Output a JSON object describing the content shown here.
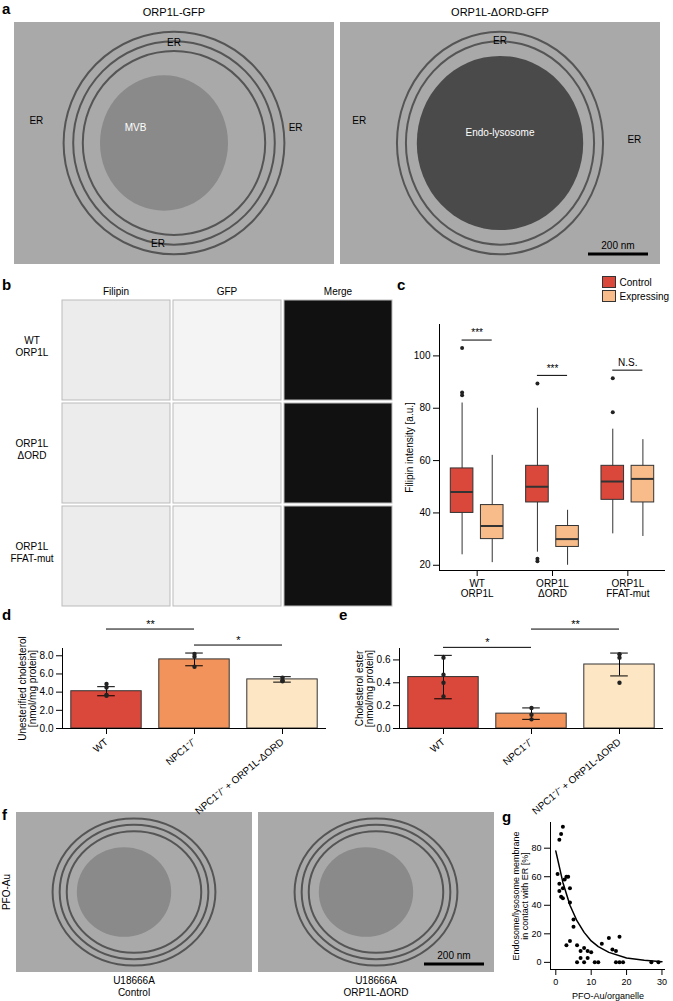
{
  "panels": {
    "a": {
      "letter": "a",
      "images": [
        {
          "title": "ORP1L-GFP",
          "labels": [
            "ER",
            "ER",
            "ER",
            "ER",
            "MVB"
          ]
        },
        {
          "title": "ORP1L-ΔORD-GFP",
          "labels": [
            "ER",
            "ER",
            "ER",
            "Endo-lysosome"
          ],
          "scale_bar": "200 nm"
        }
      ]
    },
    "b": {
      "letter": "b",
      "columns": [
        "Filipin",
        "GFP",
        "Merge"
      ],
      "rows": [
        "WT\nORP1L",
        "ORP1L\nΔORD",
        "ORP1L\nFFAT-mut"
      ]
    },
    "f": {
      "letter": "f",
      "side_label": "PFO-Au",
      "images": [
        {
          "caption": "U18666A\nControl"
        },
        {
          "caption": "U18666A\nORP1L-ΔORD",
          "scale_bar": "200 nm"
        }
      ]
    }
  },
  "chart_data": [
    {
      "panel": "c",
      "type": "boxplot",
      "categories": [
        "WT\nORP1L",
        "ORP1L\nΔORD",
        "ORP1L\nFFAT-mut"
      ],
      "series": [
        {
          "name": "Control",
          "color": "#d9483b",
          "boxes": [
            {
              "min": 24,
              "q1": 40,
              "median": 48,
              "q3": 57,
              "max": 82,
              "outliers": [
                85,
                86,
                103
              ]
            },
            {
              "min": 25,
              "q1": 44,
              "median": 50,
              "q3": 58,
              "max": 80,
              "outliers": [
                89.5,
                22.5,
                21.5
              ]
            },
            {
              "min": 32,
              "q1": 45,
              "median": 52,
              "q3": 58,
              "max": 72,
              "outliers": [
                78.5,
                91.5
              ]
            }
          ]
        },
        {
          "name": "Expressing",
          "color": "#f7bc8a",
          "boxes": [
            {
              "min": 21,
              "q1": 30,
              "median": 35,
              "q3": 43,
              "max": 62,
              "outliers": []
            },
            {
              "min": 20,
              "q1": 27,
              "median": 30,
              "q3": 35,
              "max": 41,
              "outliers": []
            },
            {
              "min": 31,
              "q1": 44,
              "median": 53,
              "q3": 58,
              "max": 68,
              "outliers": []
            }
          ]
        }
      ],
      "significance": [
        "***",
        "***",
        "N.S."
      ],
      "y_label": "Filipin intensity [a.u.]",
      "ylim": [
        18,
        112
      ],
      "yticks": [
        20,
        40,
        60,
        80,
        100
      ],
      "legend": "top-right"
    },
    {
      "panel": "d",
      "type": "bar",
      "categories": [
        "WT",
        "NPC1⁻/⁻",
        "NPC1⁻/⁻ + ORP1L-ΔORD"
      ],
      "values": [
        4.1,
        7.6,
        5.4
      ],
      "errors": [
        0.5,
        0.7,
        0.3
      ],
      "points": [
        [
          4.9,
          4.5,
          3.7,
          3.6
        ],
        [
          8.2,
          7.9,
          6.8
        ],
        [
          5.6,
          5.3,
          5.2
        ]
      ],
      "colors": [
        "#d9483b",
        "#f2935c",
        "#fde6c4"
      ],
      "y_label": "Unesterified cholesterol\n[nmol/mg protein]",
      "ylim": [
        0,
        8.8
      ],
      "yticks": [
        {
          "value": 0,
          "label": "0.0"
        },
        {
          "value": 2,
          "label": "2.0"
        },
        {
          "value": 4,
          "label": "4.0"
        },
        {
          "value": 6,
          "label": "6.0"
        },
        {
          "value": 8,
          "label": "8.0"
        }
      ],
      "significance": [
        {
          "pair": [
            "NPC1⁻/⁻",
            "NPC1⁻/⁻ + ORP1L-ΔORD"
          ],
          "label": "*"
        },
        {
          "pair": [
            "WT",
            "NPC1⁻/⁻"
          ],
          "label": "**"
        }
      ]
    },
    {
      "panel": "e",
      "type": "bar",
      "categories": [
        "WT",
        "NPC1⁻/⁻",
        "NPC1⁻/⁻ + ORP1L-ΔORD"
      ],
      "values": [
        0.45,
        0.13,
        0.56
      ],
      "errors": [
        0.19,
        0.05,
        0.1
      ],
      "points": [
        [
          0.62,
          0.47,
          0.4,
          0.28
        ],
        [
          0.18,
          0.12,
          0.08
        ],
        [
          0.65,
          0.62,
          0.4
        ]
      ],
      "colors": [
        "#d9483b",
        "#f2935c",
        "#fde6c4"
      ],
      "y_label": "Cholesterol ester\n[nmol/mg protein]",
      "ylim": [
        0,
        0.7
      ],
      "yticks": [
        {
          "value": 0,
          "label": "0.0"
        },
        {
          "value": 0.2,
          "label": "0.2"
        },
        {
          "value": 0.4,
          "label": "0.4"
        },
        {
          "value": 0.6,
          "label": "0.6"
        }
      ],
      "significance": [
        {
          "pair": [
            "WT",
            "NPC1⁻/⁻"
          ],
          "label": "*"
        },
        {
          "pair": [
            "NPC1⁻/⁻",
            "NPC1⁻/⁻ + ORP1L-ΔORD"
          ],
          "label": "**"
        }
      ]
    },
    {
      "panel": "g",
      "type": "scatter",
      "x_label": "PFO-Au/organelle",
      "y_label": "Endosome/lysosome membrane\nin contact with ER [%]",
      "x": [
        1,
        2,
        1.5,
        0.5,
        1,
        1,
        2,
        1.5,
        2.5,
        3,
        3.5,
        2,
        4,
        4,
        5,
        5,
        3,
        6,
        7,
        8,
        7,
        8,
        9,
        10,
        11,
        12,
        13,
        15,
        16,
        17,
        18,
        18,
        19,
        17,
        27,
        29,
        9,
        6,
        4
      ],
      "values": [
        86,
        95,
        90,
        62,
        55,
        50,
        52,
        46,
        58,
        60,
        60,
        45,
        52,
        42,
        30,
        25,
        12,
        12,
        8,
        10,
        3,
        0,
        8,
        7,
        0,
        0,
        13,
        17,
        9,
        0,
        0,
        18,
        0,
        8,
        0,
        0,
        3,
        0,
        15
      ],
      "fit_x": [
        0,
        2,
        4,
        6,
        8,
        10,
        12,
        15,
        20,
        25,
        30
      ],
      "fit_values": [
        78,
        56,
        40,
        29,
        21,
        15,
        11,
        7,
        3,
        1.5,
        0.5
      ],
      "xlim": [
        -1.5,
        31
      ],
      "ylim": [
        -5,
        98
      ],
      "xticks": [
        0,
        10,
        20,
        30
      ],
      "yticks": [
        0,
        20,
        40,
        60,
        80
      ]
    }
  ]
}
